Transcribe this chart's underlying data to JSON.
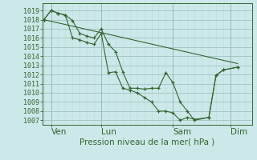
{
  "bg_color": "#cce8e8",
  "grid_major_color": "#99bbbb",
  "grid_minor_color": "#bbdddd",
  "line_color": "#336633",
  "xlabel": "Pression niveau de la mer( hPa )",
  "xlabel_fontsize": 7.5,
  "ylabel_fontsize": 6,
  "ylim": [
    1006.5,
    1019.8
  ],
  "yticks": [
    1007,
    1008,
    1009,
    1010,
    1011,
    1012,
    1013,
    1014,
    1015,
    1016,
    1017,
    1018,
    1019
  ],
  "xtick_labels": [
    "Ven",
    "Lun",
    "Sam",
    "Dim"
  ],
  "xtick_positions": [
    0.5,
    4.0,
    9.0,
    13.0
  ],
  "xlim": [
    -0.1,
    14.5
  ],
  "series1_x": [
    0.0,
    0.5,
    1.0,
    1.5,
    2.0,
    2.5,
    3.0,
    3.5,
    4.0,
    4.5,
    5.0,
    5.5,
    6.0,
    6.5,
    7.0,
    7.5,
    8.0,
    8.5,
    9.0,
    9.5,
    10.0,
    10.5,
    11.5,
    12.0,
    12.5,
    13.5
  ],
  "series1_y": [
    1018.0,
    1019.0,
    1018.7,
    1018.5,
    1017.9,
    1016.5,
    1016.2,
    1016.0,
    1017.0,
    1015.3,
    1014.5,
    1012.3,
    1010.5,
    1010.5,
    1010.4,
    1010.5,
    1010.5,
    1012.2,
    1011.1,
    1009.0,
    1008.0,
    1007.0,
    1007.3,
    1011.9,
    1012.5,
    1012.8
  ],
  "series2_x": [
    0.0,
    0.5,
    1.0,
    1.5,
    2.0,
    2.5,
    3.0,
    3.5,
    4.0,
    4.5,
    5.0,
    5.5,
    6.0,
    6.5,
    7.0,
    7.5,
    8.0,
    8.5,
    9.0,
    9.5,
    10.0,
    10.5,
    11.5,
    12.0,
    12.5,
    13.5
  ],
  "series2_y": [
    1018.0,
    1019.0,
    1018.7,
    1018.5,
    1016.0,
    1015.8,
    1015.5,
    1015.3,
    1016.5,
    1012.2,
    1012.3,
    1010.5,
    1010.3,
    1010.0,
    1009.5,
    1009.0,
    1008.0,
    1008.0,
    1007.8,
    1007.0,
    1007.3,
    1007.1,
    1007.3,
    1011.9,
    1012.5,
    1012.8
  ],
  "series3_x": [
    0.0,
    13.5
  ],
  "series3_y": [
    1018.0,
    1013.2
  ]
}
